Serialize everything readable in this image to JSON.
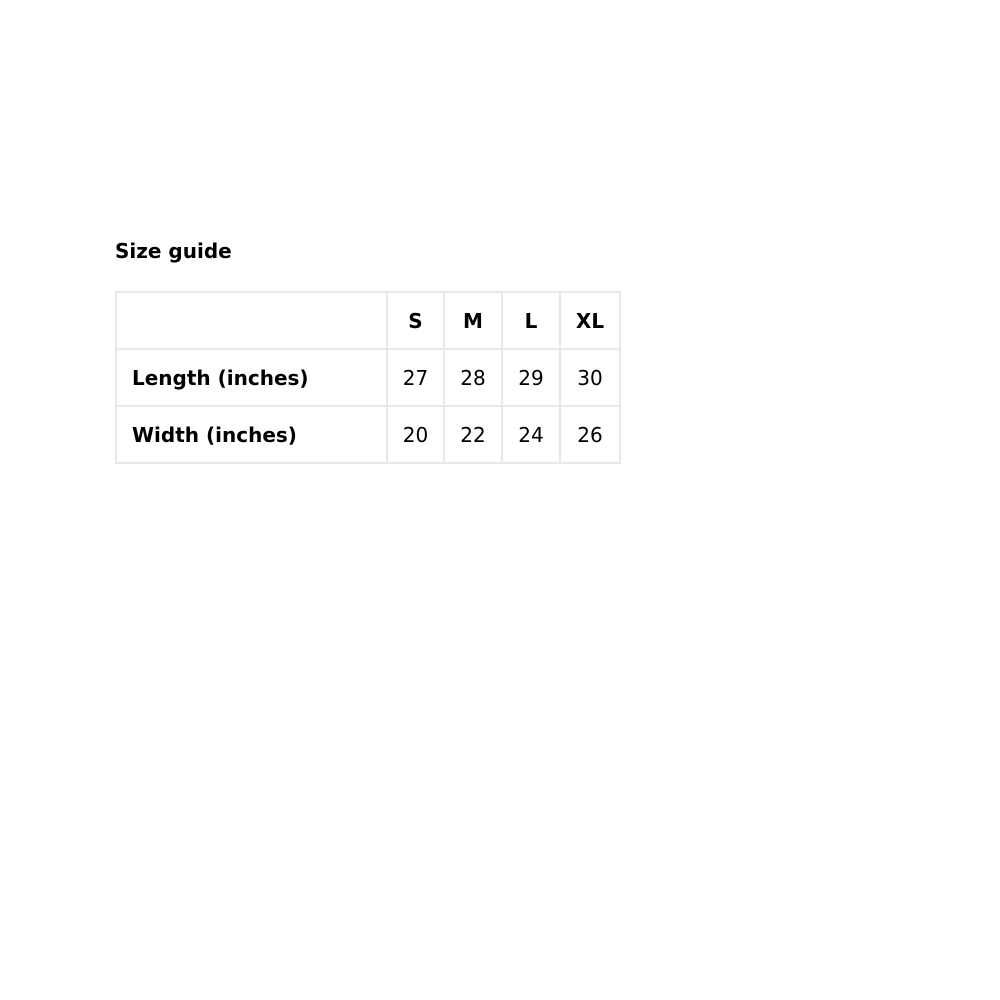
{
  "title": "Size guide",
  "table": {
    "headers": [
      "",
      "S",
      "M",
      "L",
      "XL"
    ],
    "rows": [
      {
        "label": "Length (inches)",
        "values": [
          "27",
          "28",
          "29",
          "30"
        ]
      },
      {
        "label": "Width (inches)",
        "values": [
          "20",
          "22",
          "24",
          "26"
        ]
      }
    ],
    "border_color": "#e8e8e8"
  }
}
